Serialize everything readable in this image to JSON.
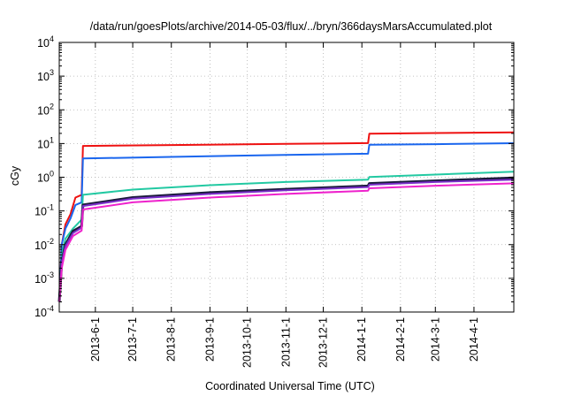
{
  "chart_data": {
    "type": "line",
    "title": "/data/run/goesPlots/archive/2014-05-03/flux/../bryn/366daysMarsAccumulated.plot",
    "xlabel": "Coordinated Universal Time (UTC)",
    "ylabel": "cGy",
    "yscale": "log",
    "ylim": [
      0.0001,
      10000
    ],
    "xlim": [
      "2013-05-03",
      "2014-05-03"
    ],
    "grid": true,
    "y_ticks": [
      {
        "base": "10",
        "exp": "-4",
        "value": 0.0001
      },
      {
        "base": "10",
        "exp": "-3",
        "value": 0.001
      },
      {
        "base": "10",
        "exp": "-2",
        "value": 0.01
      },
      {
        "base": "10",
        "exp": "-1",
        "value": 0.1
      },
      {
        "base": "10",
        "exp": "0",
        "value": 1
      },
      {
        "base": "10",
        "exp": "1",
        "value": 10
      },
      {
        "base": "10",
        "exp": "2",
        "value": 100
      },
      {
        "base": "10",
        "exp": "3",
        "value": 1000
      },
      {
        "base": "10",
        "exp": "4",
        "value": 10000
      }
    ],
    "x_ticks": [
      {
        "label": "2013-6-1",
        "date": "2013-06-01"
      },
      {
        "label": "2013-7-1",
        "date": "2013-07-01"
      },
      {
        "label": "2013-8-1",
        "date": "2013-08-01"
      },
      {
        "label": "2013-9-1",
        "date": "2013-09-01"
      },
      {
        "label": "2013-10-1",
        "date": "2013-10-01"
      },
      {
        "label": "2013-11-1",
        "date": "2013-11-01"
      },
      {
        "label": "2013-12-1",
        "date": "2013-12-01"
      },
      {
        "label": "2014-1-1",
        "date": "2014-01-01"
      },
      {
        "label": "2014-2-1",
        "date": "2014-02-01"
      },
      {
        "label": "2014-3-1",
        "date": "2014-03-01"
      },
      {
        "label": "2014-4-1",
        "date": "2014-04-01"
      }
    ],
    "series": [
      {
        "color": "#ee1111",
        "width": 2,
        "points": [
          [
            "2013-05-03",
            0.0002
          ],
          [
            "2013-05-05",
            0.01
          ],
          [
            "2013-05-08",
            0.04
          ],
          [
            "2013-05-12",
            0.08
          ],
          [
            "2013-05-16",
            0.25
          ],
          [
            "2013-05-21",
            0.3
          ],
          [
            "2013-05-22",
            8.5
          ],
          [
            "2013-08-01",
            9.0
          ],
          [
            "2013-11-01",
            9.8
          ],
          [
            "2014-01-06",
            10.3
          ],
          [
            "2014-01-07",
            19.5
          ],
          [
            "2014-03-01",
            20.5
          ],
          [
            "2014-05-03",
            21.5
          ]
        ]
      },
      {
        "color": "#1a66ee",
        "width": 2,
        "points": [
          [
            "2013-05-03",
            0.0002
          ],
          [
            "2013-05-05",
            0.01
          ],
          [
            "2013-05-08",
            0.03
          ],
          [
            "2013-05-12",
            0.06
          ],
          [
            "2013-05-16",
            0.15
          ],
          [
            "2013-05-21",
            0.18
          ],
          [
            "2013-05-22",
            3.6
          ],
          [
            "2013-08-01",
            4.0
          ],
          [
            "2013-11-01",
            4.6
          ],
          [
            "2014-01-06",
            5.0
          ],
          [
            "2014-01-07",
            9.2
          ],
          [
            "2014-03-01",
            9.6
          ],
          [
            "2014-05-03",
            10.2
          ]
        ]
      },
      {
        "color": "#22c9a2",
        "width": 2,
        "points": [
          [
            "2013-05-03",
            0.0002
          ],
          [
            "2013-05-05",
            0.005
          ],
          [
            "2013-05-08",
            0.015
          ],
          [
            "2013-05-14",
            0.03
          ],
          [
            "2013-05-21",
            0.055
          ],
          [
            "2013-05-22",
            0.3
          ],
          [
            "2013-07-01",
            0.43
          ],
          [
            "2013-09-01",
            0.58
          ],
          [
            "2013-11-01",
            0.72
          ],
          [
            "2014-01-06",
            0.85
          ],
          [
            "2014-01-07",
            1.02
          ],
          [
            "2014-03-01",
            1.2
          ],
          [
            "2014-05-03",
            1.45
          ]
        ]
      },
      {
        "color": "#1a1a3a",
        "width": 3,
        "points": [
          [
            "2013-05-03",
            0.0002
          ],
          [
            "2013-05-05",
            0.003
          ],
          [
            "2013-05-08",
            0.01
          ],
          [
            "2013-05-14",
            0.025
          ],
          [
            "2013-05-21",
            0.035
          ],
          [
            "2013-05-22",
            0.15
          ],
          [
            "2013-07-01",
            0.25
          ],
          [
            "2013-09-01",
            0.35
          ],
          [
            "2013-11-01",
            0.44
          ],
          [
            "2014-01-06",
            0.55
          ],
          [
            "2014-01-07",
            0.65
          ],
          [
            "2014-03-01",
            0.78
          ],
          [
            "2014-05-03",
            0.95
          ]
        ]
      },
      {
        "color": "#7a2ec9",
        "width": 2,
        "points": [
          [
            "2013-05-03",
            0.0002
          ],
          [
            "2013-05-05",
            0.003
          ],
          [
            "2013-05-08",
            0.009
          ],
          [
            "2013-05-14",
            0.022
          ],
          [
            "2013-05-21",
            0.032
          ],
          [
            "2013-05-22",
            0.14
          ],
          [
            "2013-07-01",
            0.23
          ],
          [
            "2013-09-01",
            0.32
          ],
          [
            "2013-11-01",
            0.41
          ],
          [
            "2014-01-06",
            0.51
          ],
          [
            "2014-01-07",
            0.6
          ],
          [
            "2014-03-01",
            0.72
          ],
          [
            "2014-05-03",
            0.85
          ]
        ]
      },
      {
        "color": "#ee22cc",
        "width": 2,
        "points": [
          [
            "2013-05-03",
            0.0002
          ],
          [
            "2013-05-05",
            0.002
          ],
          [
            "2013-05-08",
            0.007
          ],
          [
            "2013-05-14",
            0.018
          ],
          [
            "2013-05-21",
            0.026
          ],
          [
            "2013-05-22",
            0.11
          ],
          [
            "2013-07-01",
            0.18
          ],
          [
            "2013-09-01",
            0.25
          ],
          [
            "2013-11-01",
            0.32
          ],
          [
            "2014-01-06",
            0.4
          ],
          [
            "2014-01-07",
            0.47
          ],
          [
            "2014-03-01",
            0.56
          ],
          [
            "2014-05-03",
            0.66
          ]
        ]
      }
    ]
  }
}
